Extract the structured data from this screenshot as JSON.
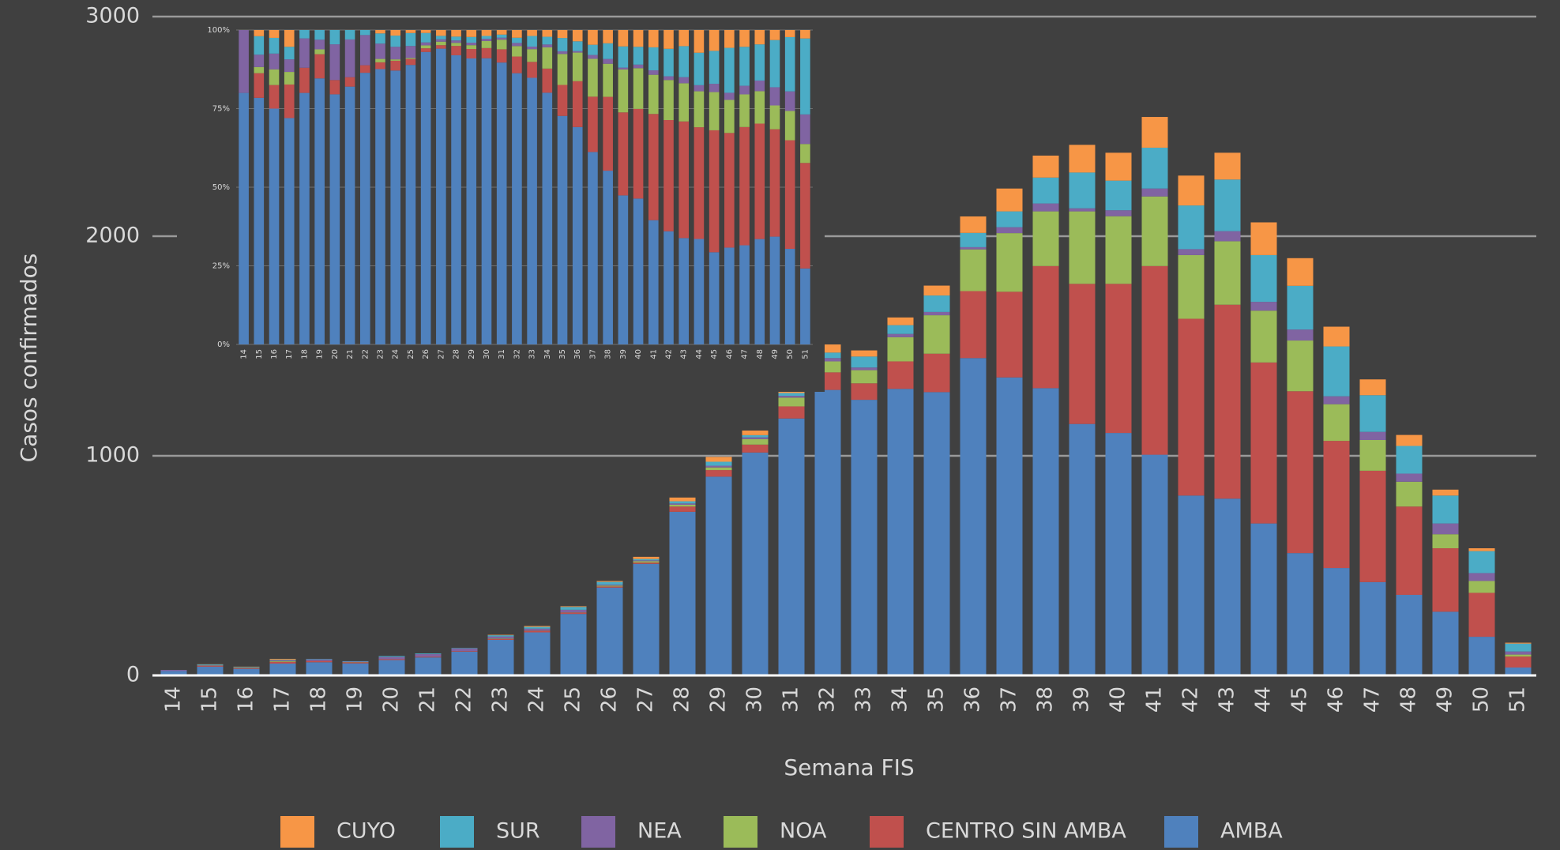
{
  "chart_data": [
    {
      "type": "bar",
      "stacking": "normal",
      "ylabel": "Casos confirmados",
      "xlabel": "Semana FIS",
      "categories": [
        "14",
        "15",
        "16",
        "17",
        "18",
        "19",
        "20",
        "21",
        "22",
        "23",
        "24",
        "25",
        "26",
        "27",
        "28",
        "29",
        "30",
        "31",
        "32",
        "33",
        "34",
        "35",
        "36",
        "37",
        "38",
        "39",
        "40",
        "41",
        "42",
        "43",
        "44",
        "45",
        "46",
        "47",
        "48",
        "49",
        "50",
        "51"
      ],
      "ylim": [
        0,
        3000
      ],
      "yticks": [
        0,
        1000,
        2000,
        3000
      ],
      "grid": true,
      "legend": "bottom",
      "series": [
        {
          "name": "CUYO",
          "color": "#f79646",
          "values": [
            0,
            1,
            1,
            4,
            0,
            0,
            0,
            0,
            0,
            2,
            4,
            3,
            4,
            10,
            17,
            22,
            21,
            19,
            37,
            28,
            35,
            45,
            75,
            104,
            100,
            126,
            127,
            140,
            136,
            122,
            149,
            126,
            90,
            72,
            50,
            27,
            13,
            4
          ]
        },
        {
          "name": "SUR",
          "color": "#4bacc6",
          "values": [
            0,
            3,
            2,
            3,
            2,
            2,
            4,
            3,
            2,
            6,
            8,
            13,
            13,
            6,
            10,
            18,
            10,
            13,
            25,
            50,
            40,
            75,
            65,
            72,
            118,
            163,
            135,
            186,
            199,
            235,
            213,
            199,
            227,
            167,
            126,
            127,
            100,
            36
          ]
        },
        {
          "name": "NEA",
          "color": "#8064a2",
          "values": [
            5,
            2,
            2,
            3,
            7,
            2,
            10,
            12,
            12,
            9,
            9,
            12,
            4,
            4,
            6,
            8,
            8,
            8,
            15,
            12,
            15,
            15,
            10,
            27,
            36,
            14,
            27,
            36,
            27,
            46,
            40,
            50,
            36,
            37,
            37,
            49,
            36,
            14
          ]
        },
        {
          "name": "NOA",
          "color": "#9bbb59",
          "values": [
            0,
            1,
            2,
            3,
            0,
            1,
            0,
            0,
            0,
            2,
            1,
            1,
            4,
            6,
            8,
            12,
            25,
            40,
            50,
            60,
            110,
            175,
            190,
            267,
            249,
            330,
            308,
            317,
            290,
            289,
            236,
            231,
            167,
            140,
            113,
            64,
            54,
            9
          ]
        },
        {
          "name": "CENTRO SIN AMBA",
          "color": "#c0504d",
          "values": [
            0,
            4,
            3,
            8,
            6,
            5,
            4,
            3,
            3,
            4,
            7,
            6,
            5,
            6,
            24,
            30,
            36,
            55,
            80,
            75,
            125,
            175,
            305,
            390,
            556,
            638,
            679,
            859,
            805,
            883,
            733,
            737,
            579,
            507,
            402,
            289,
            200,
            50
          ]
        },
        {
          "name": "AMBA",
          "color": "#4f81bd",
          "values": [
            20,
            40,
            30,
            54,
            60,
            55,
            70,
            82,
            108,
            162,
            196,
            280,
            400,
            508,
            745,
            905,
            1015,
            1170,
            1300,
            1255,
            1305,
            1290,
            1445,
            1357,
            1308,
            1145,
            1104,
            1005,
            819,
            805,
            692,
            557,
            489,
            425,
            367,
            290,
            176,
            36
          ]
        }
      ]
    },
    {
      "type": "bar",
      "stacking": "percent",
      "categories": [
        "14",
        "15",
        "16",
        "17",
        "18",
        "19",
        "20",
        "21",
        "22",
        "23",
        "24",
        "25",
        "26",
        "27",
        "28",
        "29",
        "30",
        "31",
        "32",
        "33",
        "34",
        "35",
        "36",
        "37",
        "38",
        "39",
        "40",
        "41",
        "42",
        "43",
        "44",
        "45",
        "46",
        "47",
        "48",
        "49",
        "50",
        "51"
      ],
      "ylim": [
        0,
        100
      ],
      "yticks": [
        {
          "value": 0,
          "label": "0%"
        },
        {
          "value": 25,
          "label": "25%"
        },
        {
          "value": 50,
          "label": "50%"
        },
        {
          "value": 75,
          "label": "75%"
        },
        {
          "value": 100,
          "label": "100%"
        }
      ],
      "grid": true
    }
  ]
}
